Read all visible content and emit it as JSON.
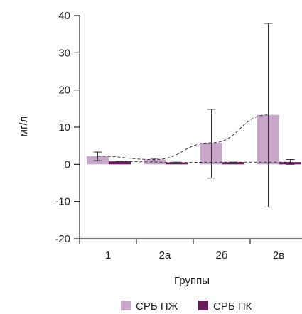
{
  "chart_data": {
    "type": "bar",
    "xlabel": "Группы",
    "ylabel": "мг/л",
    "ylim": [
      -20,
      40
    ],
    "yticks": [
      -20,
      -10,
      0,
      10,
      20,
      30,
      40
    ],
    "categories": [
      "1",
      "2а",
      "2б",
      "2в"
    ],
    "series": [
      {
        "name": "СРБ ПЖ",
        "color": "#c9a7cb",
        "values": [
          2.2,
          1.3,
          5.8,
          13.3
        ],
        "error_low": [
          1.0,
          0.9,
          -3.7,
          -11.5
        ],
        "error_high": [
          3.3,
          1.6,
          14.8,
          37.9
        ]
      },
      {
        "name": "СРБ ПК",
        "color": "#6b1a5c",
        "values": [
          0.8,
          0.5,
          0.6,
          0.6
        ],
        "error_low": [
          0.8,
          0.3,
          0.3,
          0.0
        ],
        "error_high": [
          0.8,
          0.6,
          0.6,
          1.3
        ]
      }
    ],
    "trend_lines": [
      {
        "series": "СРБ ПЖ",
        "style": "dashed",
        "shape": "curve"
      },
      {
        "series": "СРБ ПК",
        "style": "dashed",
        "shape": "straight"
      }
    ],
    "legend_position": "bottom",
    "grid": false
  }
}
